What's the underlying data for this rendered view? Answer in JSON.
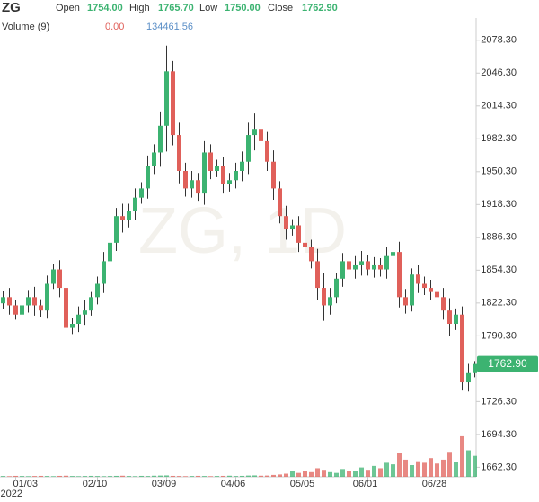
{
  "chart_data": {
    "type": "candlestick",
    "title": "ZG",
    "watermark": "ZG, 1D",
    "header": {
      "labels": [
        "Open",
        "High",
        "Low",
        "Close"
      ],
      "values": [
        "1754.00",
        "1765.70",
        "1750.00",
        "1762.90"
      ]
    },
    "volume_header": {
      "name": "Volume (9)",
      "values": [
        "0.00",
        "134461.56"
      ]
    },
    "up_color": "#3cb371",
    "down_color": "#e0605a",
    "year_label": "2022",
    "categories": [
      null,
      null,
      "01/03",
      null,
      null,
      null,
      null,
      null,
      null,
      null,
      null,
      null,
      null,
      null,
      null,
      "02/10",
      null,
      null,
      null,
      null,
      null,
      null,
      null,
      null,
      null,
      null,
      "03/09",
      null,
      null,
      null,
      null,
      null,
      null,
      null,
      null,
      null,
      null,
      "04/06",
      null,
      null,
      null,
      null,
      null,
      null,
      null,
      null,
      null,
      null,
      "05/05",
      null,
      null,
      null,
      null,
      null,
      null,
      null,
      null,
      null,
      "06/01",
      null,
      null,
      null,
      null,
      null,
      null,
      null,
      null,
      null,
      null,
      "06/28",
      null,
      null,
      null,
      null,
      null,
      null
    ],
    "open": [
      1822,
      1828,
      1820,
      1811,
      1820,
      1828,
      1820,
      1815,
      1841,
      1855,
      1837,
      1798,
      1802,
      1811,
      1815,
      1828,
      1841,
      1863,
      1881,
      1907,
      1903,
      1912,
      1925,
      1934,
      1956,
      1969,
      1995,
      2048,
      1986,
      1951,
      1934,
      1942,
      1929,
      1969,
      1951,
      1956,
      1938,
      1942,
      1951,
      1960,
      1986,
      1992,
      1980,
      1960,
      1934,
      1907,
      1894,
      1898,
      1881,
      1877,
      1863,
      1837,
      1820,
      1828,
      1846,
      1863,
      1855,
      1859,
      1863,
      1855,
      1859,
      1855,
      1868,
      1872,
      1828,
      1820,
      1850,
      1841,
      1837,
      1833,
      1828,
      1815,
      1802,
      1811,
      1745,
      1754
    ],
    "high": [
      1834,
      1837,
      1825,
      1828,
      1835,
      1838,
      1826,
      1849,
      1860,
      1864,
      1844,
      1808,
      1819,
      1825,
      1833,
      1848,
      1872,
      1887,
      1915,
      1919,
      1919,
      1934,
      1940,
      1966,
      1977,
      2009,
      2073,
      2058,
      1998,
      1959,
      1951,
      1949,
      1980,
      1977,
      1962,
      1965,
      1949,
      1959,
      1970,
      1998,
      2007,
      2000,
      1989,
      1971,
      1941,
      1917,
      1904,
      1907,
      1889,
      1884,
      1875,
      1852,
      1837,
      1852,
      1871,
      1870,
      1868,
      1873,
      1869,
      1867,
      1866,
      1877,
      1884,
      1882,
      1836,
      1856,
      1859,
      1848,
      1845,
      1843,
      1837,
      1827,
      1817,
      1819,
      1763,
      1765.7
    ],
    "low": [
      1816,
      1811,
      1806,
      1803,
      1813,
      1810,
      1809,
      1807,
      1836,
      1828,
      1791,
      1792,
      1794,
      1801,
      1810,
      1821,
      1832,
      1857,
      1873,
      1891,
      1896,
      1903,
      1919,
      1924,
      1948,
      1955,
      1970,
      1976,
      1939,
      1926,
      1925,
      1922,
      1918,
      1943,
      1945,
      1929,
      1931,
      1934,
      1941,
      1948,
      1971,
      1972,
      1951,
      1923,
      1900,
      1884,
      1888,
      1872,
      1869,
      1856,
      1825,
      1805,
      1811,
      1822,
      1838,
      1848,
      1846,
      1849,
      1849,
      1847,
      1848,
      1846,
      1856,
      1818,
      1812,
      1814,
      1832,
      1830,
      1825,
      1818,
      1806,
      1790,
      1796,
      1737,
      1736,
      1750
    ],
    "close": [
      1828,
      1820,
      1811,
      1820,
      1828,
      1820,
      1815,
      1841,
      1855,
      1837,
      1798,
      1802,
      1811,
      1815,
      1828,
      1841,
      1863,
      1881,
      1907,
      1903,
      1912,
      1925,
      1934,
      1956,
      1969,
      1995,
      2048,
      1986,
      1951,
      1934,
      1942,
      1929,
      1969,
      1951,
      1956,
      1938,
      1942,
      1951,
      1960,
      1986,
      1992,
      1980,
      1960,
      1934,
      1907,
      1894,
      1898,
      1881,
      1877,
      1863,
      1837,
      1820,
      1828,
      1846,
      1863,
      1855,
      1859,
      1863,
      1855,
      1859,
      1855,
      1868,
      1872,
      1828,
      1820,
      1850,
      1841,
      1837,
      1833,
      1828,
      1815,
      1802,
      1811,
      1745,
      1754,
      1762.9
    ],
    "volume": [
      5000,
      4000,
      6000,
      5000,
      4000,
      5000,
      6000,
      5000,
      4000,
      6000,
      7000,
      5000,
      4000,
      5000,
      6000,
      5000,
      4000,
      5000,
      6000,
      7000,
      5000,
      4000,
      6000,
      5000,
      7000,
      8000,
      9000,
      6000,
      5000,
      4000,
      5000,
      6000,
      5000,
      4000,
      5000,
      6000,
      7000,
      5000,
      6000,
      8000,
      9000,
      7000,
      8000,
      12000,
      15000,
      20000,
      35000,
      25000,
      40000,
      30000,
      55000,
      45000,
      30000,
      25000,
      50000,
      35000,
      40000,
      60000,
      45000,
      70000,
      55000,
      90000,
      80000,
      150000,
      110000,
      75000,
      100000,
      90000,
      120000,
      85000,
      110000,
      160000,
      95000,
      260000,
      170000,
      134461.56
    ],
    "volume_ylim": [
      0,
      300000
    ],
    "ylim": [
      1653,
      2100
    ],
    "yticks": [
      {
        "value": 1662.3,
        "label": "1662.30"
      },
      {
        "value": 1694.3,
        "label": "1694.30"
      },
      {
        "value": 1726.3,
        "label": "1726.30"
      },
      {
        "value": 1790.3,
        "label": "1790.30"
      },
      {
        "value": 1822.3,
        "label": "1822.30"
      },
      {
        "value": 1854.3,
        "label": "1854.30"
      },
      {
        "value": 1886.3,
        "label": "1886.30"
      },
      {
        "value": 1918.3,
        "label": "1918.30"
      },
      {
        "value": 1950.3,
        "label": "1950.30"
      },
      {
        "value": 1982.3,
        "label": "1982.30"
      },
      {
        "value": 2014.3,
        "label": "2014.30"
      },
      {
        "value": 2046.3,
        "label": "2046.30"
      },
      {
        "value": 2078.3,
        "label": "2078.30"
      }
    ]
  }
}
